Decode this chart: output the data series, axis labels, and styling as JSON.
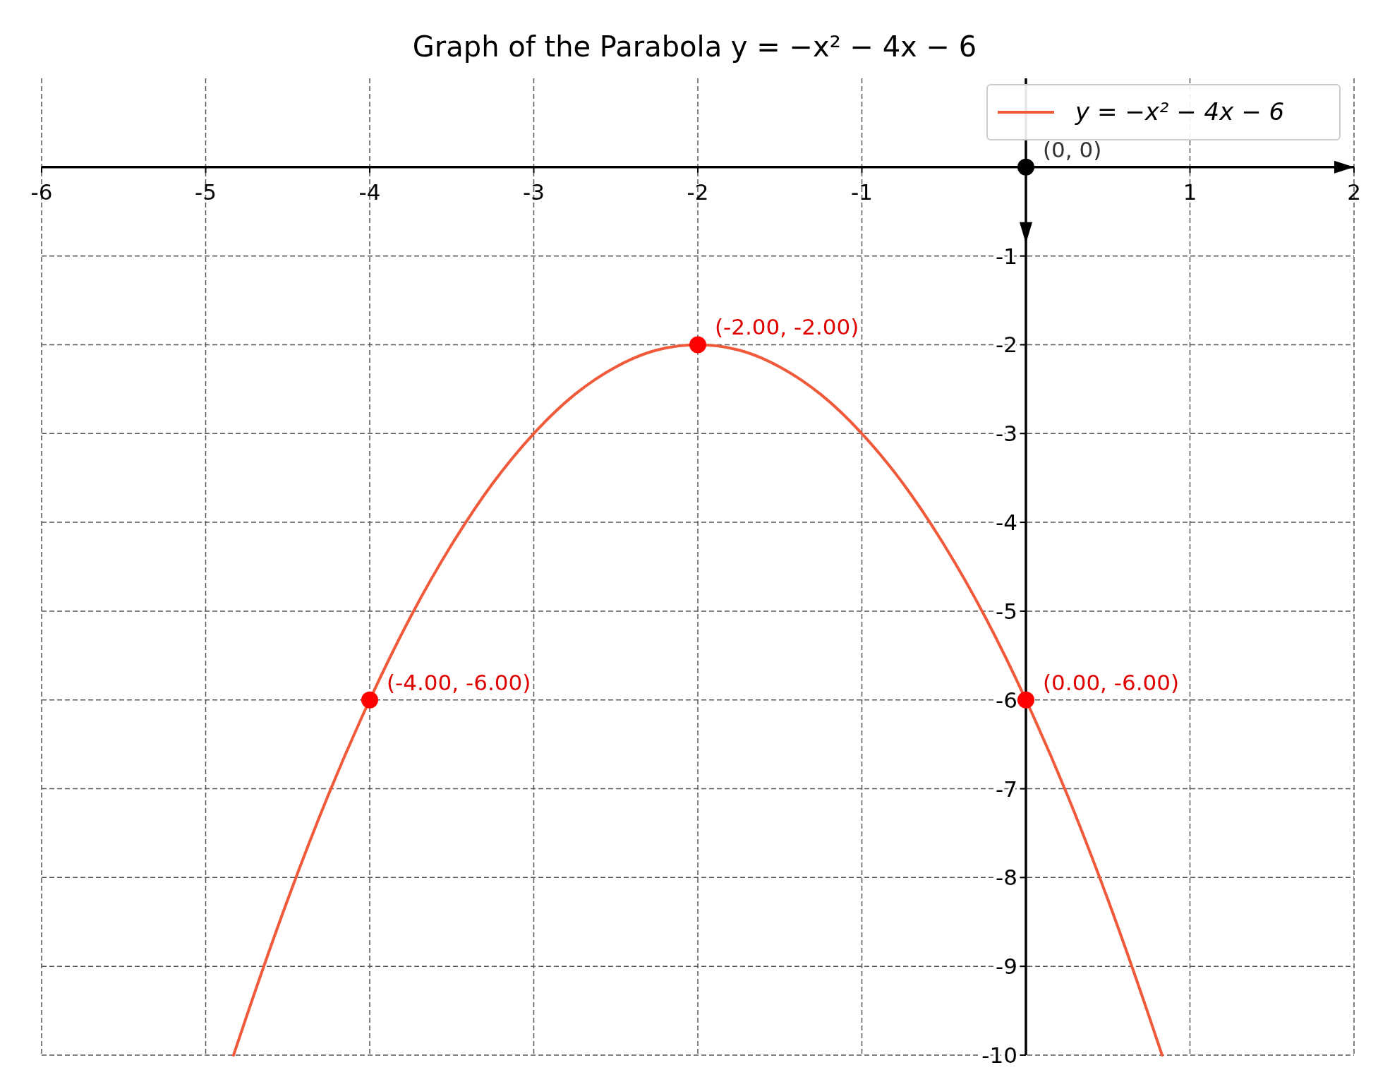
{
  "chart_data": {
    "type": "line",
    "title": "Graph of the Parabola y = −x² − 4x − 6",
    "xlim": [
      -6,
      2
    ],
    "ylim": [
      -10,
      1
    ],
    "xticks": [
      -6,
      -5,
      -4,
      -3,
      -2,
      -1,
      1,
      2
    ],
    "yticks": [
      -10,
      -9,
      -8,
      -7,
      -6,
      -5,
      -4,
      -3,
      -2,
      -1
    ],
    "grid": true,
    "legend": "top right",
    "line_style": "solid",
    "series": [
      {
        "name": "y = −x² − 4x − 6",
        "color": "#f05a3a",
        "marker": "none",
        "x": [
          -4.83,
          -4.75,
          -4.5,
          -4.25,
          -4,
          -3.75,
          -3.5,
          -3.25,
          -3,
          -2.75,
          -2.5,
          -2.25,
          -2,
          -1.75,
          -1.5,
          -1.25,
          -1,
          -0.75,
          -0.5,
          -0.25,
          0,
          0.25,
          0.5,
          0.75,
          0.83
        ],
        "values": [
          -10,
          -9.56,
          -8.25,
          -7.06,
          -6,
          -5.06,
          -4.25,
          -3.56,
          -3,
          -2.56,
          -2.25,
          -2.06,
          -2,
          -2.06,
          -2.25,
          -2.56,
          -3,
          -3.56,
          -4.25,
          -5.06,
          -6,
          -7.06,
          -8.25,
          -9.56,
          -10
        ]
      },
      {
        "color": "#ff0000",
        "type": "scatter",
        "marker": "circle",
        "x": [
          -2,
          -4,
          0
        ],
        "values": [
          -2,
          -6,
          -6
        ]
      },
      {
        "color": "#000000",
        "type": "scatter",
        "marker": "circle",
        "x": [
          0
        ],
        "values": [
          0
        ]
      }
    ],
    "annotations": [
      {
        "text": "(-2.00, -2.00)",
        "x": -2,
        "y": -2
      },
      {
        "text": "(-4.00, -6.00)",
        "x": -4,
        "y": -6
      },
      {
        "text": "(0.00, -6.00)",
        "x": 0,
        "y": -6
      },
      {
        "text": "(0, 0)",
        "x": 0,
        "y": 0
      }
    ]
  }
}
